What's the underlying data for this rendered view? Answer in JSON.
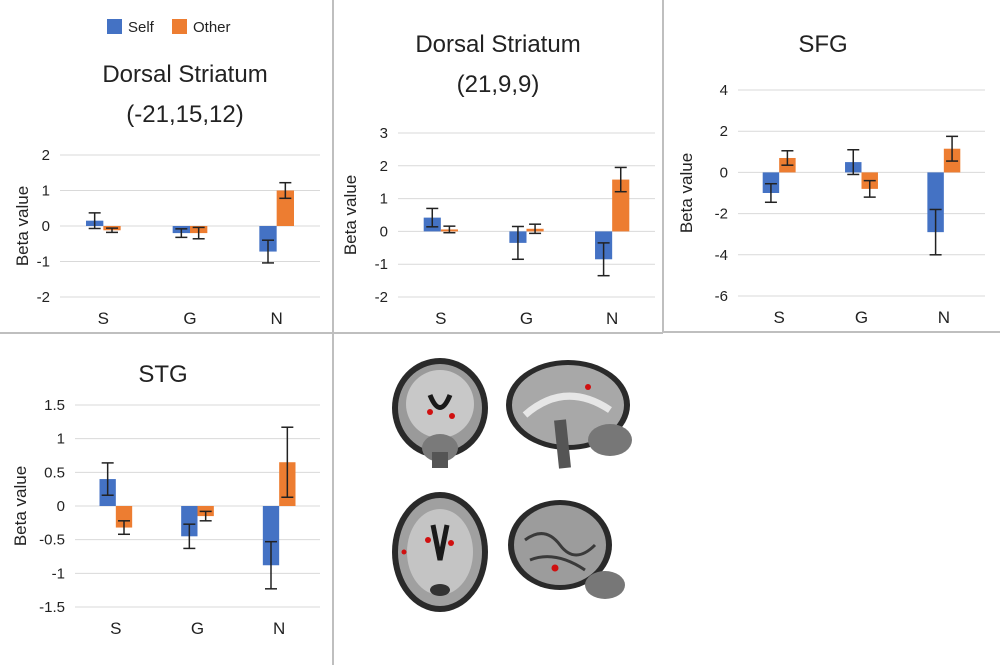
{
  "legend": {
    "self": "Self",
    "other": "Other"
  },
  "colors": {
    "self": "#4472C4",
    "other": "#ED7D31",
    "errorbar": "#222222",
    "grid": "#d9d9d9",
    "divider": "#bfbfbf"
  },
  "brain_images": {
    "label": "brain-scan-images",
    "views": [
      "coronal",
      "sagittal",
      "axial",
      "sagittal-lateral"
    ]
  },
  "chart_data": [
    {
      "id": "dorsal-striatum-left",
      "type": "bar",
      "title_lines": [
        "Dorsal Striatum",
        "(-21,15,12)"
      ],
      "ylabel": "Beta value",
      "categories": [
        "S",
        "G",
        "N"
      ],
      "yticks": [
        2,
        1,
        0,
        -1,
        -2
      ],
      "ylim": [
        -2,
        2
      ],
      "series": [
        {
          "name": "Self",
          "values": [
            0.15,
            -0.2,
            -0.72
          ],
          "errors": [
            0.22,
            0.12,
            0.32
          ]
        },
        {
          "name": "Other",
          "values": [
            -0.12,
            -0.2,
            1.0
          ],
          "errors": [
            0.06,
            0.16,
            0.22
          ]
        }
      ]
    },
    {
      "id": "dorsal-striatum-right",
      "type": "bar",
      "title_lines": [
        "Dorsal Striatum",
        "(21,9,9)"
      ],
      "ylabel": "Beta value",
      "categories": [
        "S",
        "G",
        "N"
      ],
      "yticks": [
        3,
        2,
        1,
        0,
        -1,
        -2
      ],
      "ylim": [
        -2,
        3
      ],
      "series": [
        {
          "name": "Self",
          "values": [
            0.42,
            -0.35,
            -0.85
          ],
          "errors": [
            0.28,
            0.5,
            0.5
          ]
        },
        {
          "name": "Other",
          "values": [
            0.06,
            0.08,
            1.58
          ],
          "errors": [
            0.1,
            0.14,
            0.37
          ]
        }
      ]
    },
    {
      "id": "sfg",
      "type": "bar",
      "title_lines": [
        "SFG"
      ],
      "ylabel": "Beta value",
      "categories": [
        "S",
        "G",
        "N"
      ],
      "yticks": [
        4,
        2,
        0,
        -2,
        -4,
        -6
      ],
      "ylim": [
        -6,
        4
      ],
      "series": [
        {
          "name": "Self",
          "values": [
            -1.0,
            0.5,
            -2.9
          ],
          "errors": [
            0.45,
            0.6,
            1.1
          ]
        },
        {
          "name": "Other",
          "values": [
            0.7,
            -0.8,
            1.15
          ],
          "errors": [
            0.35,
            0.4,
            0.6
          ]
        }
      ]
    },
    {
      "id": "stg",
      "type": "bar",
      "title_lines": [
        "STG"
      ],
      "ylabel": "Beta value",
      "categories": [
        "S",
        "G",
        "N"
      ],
      "yticks": [
        "1.5",
        "1",
        "0.5",
        "0",
        "-0.5",
        "-1",
        "-1.5"
      ],
      "ylim": [
        -1.5,
        1.5
      ],
      "series": [
        {
          "name": "Self",
          "values": [
            0.4,
            -0.45,
            -0.88
          ],
          "errors": [
            0.24,
            0.18,
            0.35
          ]
        },
        {
          "name": "Other",
          "values": [
            -0.32,
            -0.15,
            0.65
          ],
          "errors": [
            0.1,
            0.07,
            0.52
          ]
        }
      ]
    }
  ]
}
